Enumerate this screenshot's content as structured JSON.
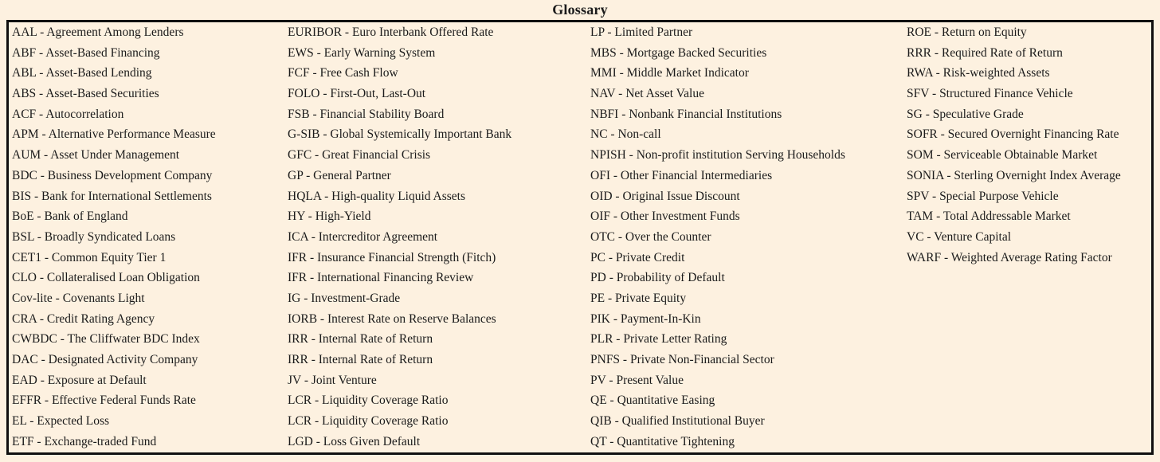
{
  "title": "Glossary",
  "colors": {
    "background": "#fdf1e0",
    "border": "#101010",
    "text": "#1b1b1b"
  },
  "glossary": {
    "columns": [
      {
        "entries": [
          "AAL - Agreement Among Lenders",
          "ABF - Asset-Based Financing",
          "ABL - Asset-Based Lending",
          "ABS - Asset-Based Securities",
          "ACF - Autocorrelation",
          "APM - Alternative Performance Measure",
          "AUM - Asset Under Management",
          "BDC - Business Development Company",
          "BIS - Bank for International Settlements",
          "BoE - Bank of England",
          "BSL - Broadly Syndicated Loans",
          "CET1 - Common Equity Tier 1",
          "CLO - Collateralised Loan Obligation",
          "Cov-lite - Covenants Light",
          "CRA - Credit Rating Agency",
          "CWBDC - The Cliffwater BDC Index",
          "DAC - Designated Activity Company",
          "EAD - Exposure at Default",
          "EFFR - Effective Federal Funds Rate",
          "EL - Expected Loss",
          "ETF - Exchange-traded Fund"
        ]
      },
      {
        "entries": [
          "EURIBOR - Euro Interbank Offered Rate",
          "EWS - Early Warning System",
          "FCF - Free Cash Flow",
          "FOLO - First-Out, Last-Out",
          "FSB - Financial Stability Board",
          "G-SIB - Global Systemically Important Bank",
          "GFC - Great Financial Crisis",
          "GP - General Partner",
          "HQLA - High-quality Liquid Assets",
          "HY - High-Yield",
          "ICA - Intercreditor Agreement",
          "IFR - Insurance Financial Strength (Fitch)",
          "IFR - International Financing Review",
          "IG - Investment-Grade",
          "IORB - Interest Rate on Reserve Balances",
          "IRR - Internal Rate of Return",
          "IRR - Internal Rate of Return",
          "JV - Joint Venture",
          "LCR - Liquidity Coverage Ratio",
          "LCR - Liquidity Coverage Ratio",
          "LGD - Loss Given Default"
        ]
      },
      {
        "entries": [
          "LP - Limited Partner",
          "MBS - Mortgage Backed Securities",
          "MMI - Middle Market Indicator",
          "NAV - Net Asset Value",
          "NBFI - Nonbank Financial Institutions",
          "NC - Non-call",
          "NPISH - Non-profit institution Serving Households",
          "OFI - Other Financial Intermediaries",
          "OID - Original Issue Discount",
          "OIF - Other Investment Funds",
          "OTC - Over the Counter",
          "PC - Private Credit",
          "PD - Probability of Default",
          "PE - Private Equity",
          "PIK - Payment-In-Kin",
          "PLR - Private Letter Rating",
          "PNFS - Private Non-Financial Sector",
          "PV - Present Value",
          "QE - Quantitative Easing",
          "QIB - Qualified Institutional Buyer",
          "QT - Quantitative Tightening"
        ]
      },
      {
        "entries": [
          "ROE - Return on Equity",
          "RRR - Required Rate of Return",
          "RWA - Risk-weighted Assets",
          "SFV - Structured Finance Vehicle",
          "SG - Speculative Grade",
          "SOFR - Secured Overnight Financing Rate",
          "SOM - Serviceable Obtainable Market",
          "SONIA - Sterling Overnight Index Average",
          "SPV - Special Purpose Vehicle",
          "TAM - Total Addressable Market",
          "VC - Venture Capital",
          "WARF - Weighted Average Rating Factor"
        ]
      }
    ]
  }
}
